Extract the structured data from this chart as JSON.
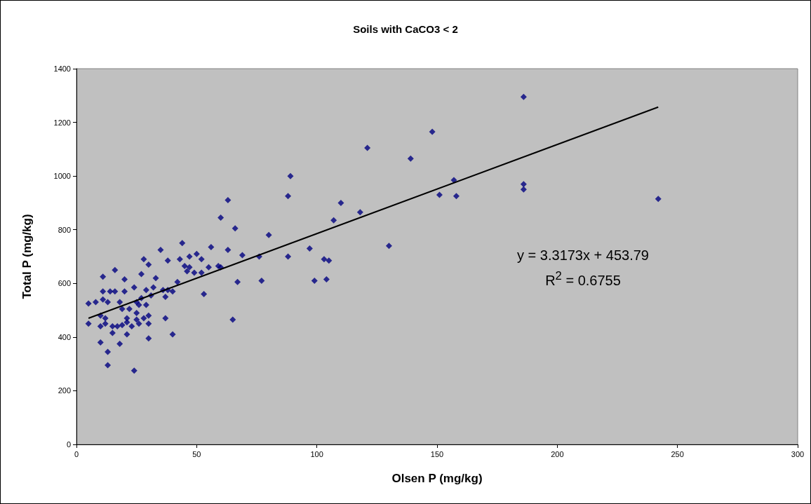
{
  "chart_data": {
    "type": "scatter",
    "title": "Soils with CaCO3 < 2",
    "xlabel": "Olsen P (mg/kg)",
    "ylabel": "Total P (mg/kg)",
    "xlim": [
      0,
      300
    ],
    "xticks": [
      0,
      50,
      100,
      150,
      200,
      250,
      300
    ],
    "ylim": [
      0,
      1400
    ],
    "yticks": [
      0,
      200,
      400,
      600,
      800,
      1000,
      1200,
      1400
    ],
    "grid": false,
    "marker": "diamond",
    "annotations": [
      "y = 3.3173x + 453.79",
      "R$^{2}$ = 0.6755"
    ],
    "series": [
      {
        "color": "#000080",
        "x": [
          5,
          5,
          8,
          10,
          10,
          10,
          11,
          11,
          11,
          12,
          12,
          13,
          13,
          13,
          14,
          15,
          15,
          16,
          16,
          17,
          18,
          18,
          19,
          19,
          20,
          20,
          21,
          21,
          21,
          22,
          23,
          24,
          24,
          25,
          25,
          25,
          26,
          26,
          27,
          27,
          28,
          28,
          29,
          29,
          30,
          30,
          30,
          30,
          31,
          32,
          33,
          35,
          36,
          37,
          37,
          38,
          38,
          40,
          40,
          42,
          43,
          44,
          45,
          46,
          47,
          47,
          49,
          50,
          52,
          52,
          53,
          55,
          56,
          59,
          60,
          60,
          63,
          63,
          65,
          66,
          67,
          69,
          76,
          77,
          80,
          88,
          88,
          89,
          97,
          99,
          103,
          104,
          105,
          107,
          110,
          118,
          121,
          130,
          139,
          148,
          151,
          157,
          158,
          186,
          186,
          186,
          242
        ],
        "values": [
          450,
          525,
          530,
          380,
          440,
          480,
          625,
          570,
          540,
          450,
          470,
          295,
          345,
          530,
          570,
          415,
          440,
          570,
          650,
          440,
          375,
          530,
          505,
          445,
          615,
          570,
          410,
          470,
          455,
          505,
          440,
          585,
          275,
          490,
          530,
          465,
          450,
          520,
          635,
          545,
          690,
          470,
          575,
          520,
          395,
          480,
          450,
          670,
          555,
          585,
          620,
          725,
          575,
          470,
          550,
          685,
          575,
          410,
          570,
          605,
          690,
          750,
          665,
          645,
          660,
          700,
          640,
          710,
          690,
          640,
          560,
          660,
          735,
          665,
          845,
          660,
          910,
          725,
          465,
          805,
          605,
          705,
          700,
          610,
          780,
          925,
          700,
          1000,
          730,
          610,
          690,
          615,
          685,
          835,
          900,
          865,
          1105,
          740,
          1065,
          1165,
          930,
          985,
          925,
          1295,
          970,
          950,
          915
        ]
      },
      {
        "type": "line",
        "color": "#000000",
        "line_style": "solid",
        "marker": "none",
        "x": [
          5,
          242
        ],
        "values": [
          470,
          1257
        ]
      }
    ]
  }
}
